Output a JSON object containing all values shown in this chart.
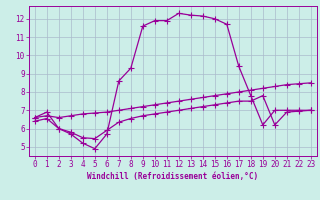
{
  "xlabel": "Windchill (Refroidissement éolien,°C)",
  "bg_color": "#cceee8",
  "line_color": "#990099",
  "grid_color": "#aabbcc",
  "xlim": [
    -0.5,
    23.5
  ],
  "ylim": [
    4.5,
    12.7
  ],
  "yticks": [
    5,
    6,
    7,
    8,
    9,
    10,
    11,
    12
  ],
  "xticks": [
    0,
    1,
    2,
    3,
    4,
    5,
    6,
    7,
    8,
    9,
    10,
    11,
    12,
    13,
    14,
    15,
    16,
    17,
    18,
    19,
    20,
    21,
    22,
    23
  ],
  "line1_x": [
    0,
    1,
    2,
    3,
    4,
    5,
    6,
    7,
    8,
    9,
    10,
    11,
    12,
    13,
    14,
    15,
    16,
    17,
    18,
    19,
    20,
    21,
    22,
    23
  ],
  "line1_y": [
    6.6,
    6.9,
    6.0,
    5.7,
    5.2,
    4.9,
    5.7,
    8.6,
    9.3,
    11.6,
    11.9,
    11.9,
    12.3,
    12.2,
    12.15,
    12.0,
    11.7,
    9.4,
    7.8,
    6.2,
    7.0,
    7.0,
    7.0,
    7.0
  ],
  "line2_x": [
    0,
    1,
    2,
    3,
    4,
    5,
    6,
    7,
    8,
    9,
    10,
    11,
    12,
    13,
    14,
    15,
    16,
    17,
    18,
    19,
    20,
    21,
    22,
    23
  ],
  "line2_y": [
    6.6,
    6.7,
    6.6,
    6.7,
    6.8,
    6.85,
    6.9,
    7.0,
    7.1,
    7.2,
    7.3,
    7.4,
    7.5,
    7.6,
    7.7,
    7.8,
    7.9,
    8.0,
    8.1,
    8.2,
    8.3,
    8.4,
    8.45,
    8.5
  ],
  "line3_x": [
    0,
    1,
    2,
    3,
    4,
    5,
    6,
    7,
    8,
    9,
    10,
    11,
    12,
    13,
    14,
    15,
    16,
    17,
    18,
    19,
    20,
    21,
    22,
    23
  ],
  "line3_y": [
    6.4,
    6.55,
    6.0,
    5.8,
    5.5,
    5.45,
    5.9,
    6.35,
    6.55,
    6.7,
    6.8,
    6.9,
    7.0,
    7.1,
    7.2,
    7.3,
    7.4,
    7.5,
    7.5,
    7.8,
    6.2,
    6.9,
    6.95,
    7.0
  ]
}
